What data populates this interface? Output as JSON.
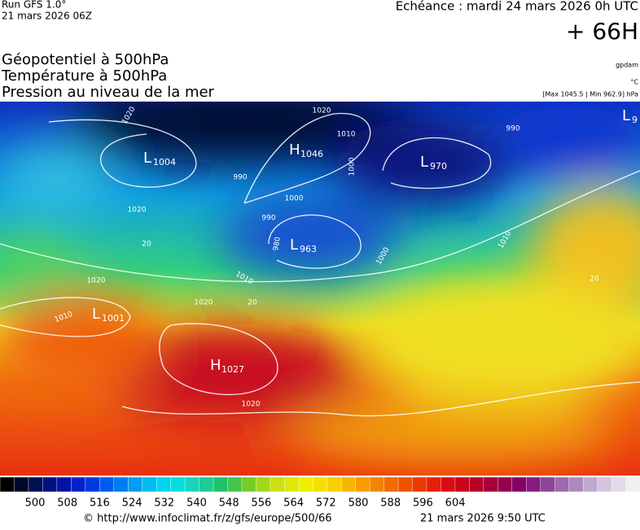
{
  "header": {
    "run": "Run GFS 1.0°",
    "run_date": "21 mars 2026 06Z",
    "echeance": "Echéance : mardi 24 mars 2026 0h UTC",
    "lead": "+ 66H"
  },
  "titles": [
    "Géopotentiel à 500hPa",
    "Température à 500hPa",
    "Pression au niveau de la mer"
  ],
  "units": {
    "geopotential": "gpdam",
    "temperature": "°C",
    "pressure": "[Max 1045.5 | Min 962.9] hPa"
  },
  "centers": [
    {
      "kind": "L",
      "value": "1004"
    },
    {
      "kind": "H",
      "value": "1046"
    },
    {
      "kind": "L",
      "value": "970"
    },
    {
      "kind": "L",
      "value": "963"
    },
    {
      "kind": "L",
      "value": "1001"
    },
    {
      "kind": "H",
      "value": "1027"
    },
    {
      "kind": "L",
      "value": "9"
    }
  ],
  "contour_labels": [
    "1020",
    "1020",
    "1010",
    "990",
    "1000",
    "990",
    "980",
    "1000",
    "1010",
    "1020",
    "1020",
    "1010",
    "1020",
    "1020",
    "1000",
    "990",
    "1010",
    "20",
    "20",
    "20"
  ],
  "colorbar": [
    "500",
    "508",
    "516",
    "524",
    "532",
    "540",
    "548",
    "556",
    "564",
    "572",
    "580",
    "588",
    "596",
    "604"
  ],
  "footer": {
    "source": "© http://www.infoclimat.fr/z/gfs/europe/500/66",
    "generated": "21 mars 2026  9:50 UTC"
  }
}
